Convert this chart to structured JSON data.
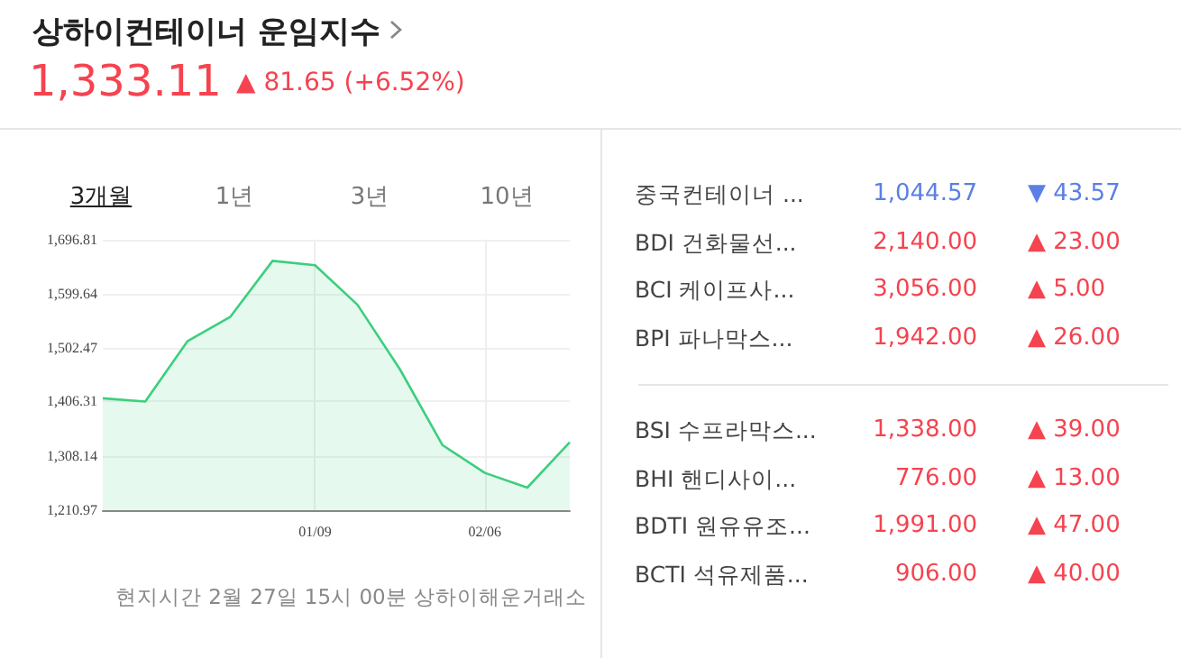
{
  "chart_data": [
    {
      "type": "area",
      "title": "상하이컨테이너 운임지수",
      "annotations": [
        "1,333.11",
        "▲ 81.65 (+6.52%)",
        "3개월",
        "1년",
        "3년",
        "10년",
        "현지시간 2월 27일 15시 00분 상하이해운거래소"
      ],
      "categories": [
        null,
        null,
        null,
        null,
        null,
        "01/09",
        null,
        null,
        null,
        "02/06",
        null,
        null
      ],
      "series": [
        {
          "color": "#3ccf7e",
          "values": [
            1412,
            1406,
            1515,
            1558,
            1659,
            1651,
            1580,
            1464,
            1328,
            1278,
            1251.46,
            1333.11
          ]
        }
      ],
      "ylim": [
        1210.97,
        1696.81
      ],
      "yticks": [
        {
          "value": 1210.97,
          "label": "1,210.97"
        },
        {
          "value": 1308.14,
          "label": "1,308.14"
        },
        {
          "value": 1406.31,
          "label": "1,406.31"
        },
        {
          "value": 1502.47,
          "label": "1,502.47"
        },
        {
          "value": 1599.64,
          "label": "1,599.64"
        },
        {
          "value": 1696.81,
          "label": "1,696.81"
        }
      ],
      "grid": true,
      "marker": "none"
    },
    {
      "type": "other",
      "annotations": [
        "중국컨테이너 ...",
        "1,044.57",
        "▼ 43.57",
        "BDI 건화물선...",
        "2,140.00",
        "▲ 23.00",
        "BCI 케이프사...",
        "3,056.00",
        "▲ 5.00",
        "BPI 파나막스...",
        "1,942.00",
        "▲ 26.00",
        "BSI 수프라막스...",
        "1,338.00",
        "▲ 39.00",
        "BHI 핸디사이...",
        "776.00",
        "▲ 13.00",
        "BDTI 원유유조...",
        "1,991.00",
        "▲ 47.00",
        "BCTI 석유제품...",
        "906.00",
        "▲ 40.00"
      ],
      "colors": [
        "#5b7fe6",
        "#f5434f",
        "#f5434f",
        "#f5434f",
        "#f5434f",
        "#f5434f",
        "#f5434f",
        "#f5434f"
      ]
    }
  ]
}
